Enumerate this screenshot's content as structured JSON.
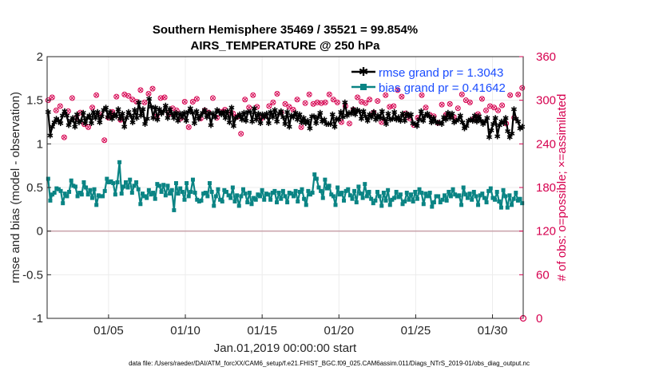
{
  "chart_data": {
    "type": "line",
    "title": "Southern Hemisphere 35469 / 35521 = 99.854%",
    "subtitle": "AIRS_TEMPERATURE @ 250 hPa",
    "xlabel": "Jan.01,2019 00:00:00 start",
    "ylabel": "rmse and bias (model - observation)",
    "ylabel_right": "# of obs: o=possible; ×=assimilated",
    "xlim": [
      1,
      32
    ],
    "ylim": [
      -1,
      2
    ],
    "ylim_right": [
      0,
      360
    ],
    "x_ticks": [
      5,
      10,
      15,
      20,
      25,
      30
    ],
    "x_tick_labels": [
      "01/05",
      "01/10",
      "01/15",
      "01/20",
      "01/25",
      "01/30"
    ],
    "y_ticks": [
      -1,
      -0.5,
      0,
      0.5,
      1,
      1.5,
      2
    ],
    "y_tick_labels": [
      "-1",
      "-0.5",
      "0",
      "0.5",
      "1",
      "1.5",
      "2"
    ],
    "y_right_ticks": [
      0,
      60,
      120,
      180,
      240,
      300,
      360
    ],
    "y_right_tick_labels": [
      "0",
      "60",
      "120",
      "180",
      "240",
      "300",
      "360"
    ],
    "legend_position": "top-right",
    "footer": "data file: /Users/raeder/DAI/ATM_forcXX/CAM6_setup/f.e21.FHIST_BGC.f09_025.CAM6assim.011/Diags_NTrS_2019-01/obs_diag_output.nc",
    "colors": {
      "rmse": "#000000",
      "bias": "#0a8484",
      "obs": "#d6004f",
      "legend_text": "#1a4cff",
      "zero_line": "#c7a0a8"
    },
    "series": [
      {
        "name": "rmse grand pr = 1.3043",
        "axis": "left",
        "values": [
          1.37,
          1.1,
          1.2,
          1.25,
          1.29,
          1.27,
          1.24,
          1.33,
          1.38,
          1.33,
          1.22,
          1.27,
          1.3,
          1.2,
          1.34,
          1.25,
          1.27,
          1.36,
          1.24,
          1.3,
          1.33,
          1.24,
          1.37,
          1.3,
          1.37,
          1.25,
          1.32,
          1.39,
          1.42,
          1.31,
          1.37,
          1.29,
          1.34,
          1.32,
          1.4,
          1.29,
          1.35,
          1.2,
          1.3,
          1.37,
          1.33,
          1.25,
          1.39,
          1.3,
          1.48,
          1.33,
          1.4,
          1.23,
          1.29,
          1.52,
          1.43,
          1.3,
          1.42,
          1.28,
          1.4,
          1.35,
          1.38,
          1.44,
          1.3,
          1.4,
          1.35,
          1.3,
          1.36,
          1.27,
          1.35,
          1.31,
          1.36,
          1.27,
          1.37,
          1.41,
          1.36,
          1.24,
          1.38,
          1.29,
          1.33,
          1.36,
          1.39,
          1.31,
          1.36,
          1.22,
          1.35,
          1.31,
          1.39,
          1.37,
          1.34,
          1.37,
          1.3,
          1.38,
          1.25,
          1.42,
          1.21,
          1.3,
          1.32,
          1.34,
          1.28,
          1.36,
          1.27,
          1.37,
          1.37,
          1.26,
          1.41,
          1.28,
          1.35,
          1.24,
          1.34,
          1.31,
          1.35,
          1.24,
          1.37,
          1.31,
          1.39,
          1.26,
          1.35,
          1.38,
          1.31,
          1.23,
          1.37,
          1.2,
          1.33,
          1.31,
          1.36,
          1.28,
          1.34,
          1.25,
          1.3,
          1.24,
          1.27,
          1.18,
          1.32,
          1.32,
          1.24,
          1.31,
          1.36,
          1.26,
          1.28,
          1.23,
          1.23,
          1.23,
          1.34,
          1.2,
          1.29,
          1.28,
          1.37,
          1.31,
          1.48,
          1.33,
          1.36,
          1.35,
          1.4,
          1.34,
          1.39,
          1.38,
          1.29,
          1.38,
          1.32,
          1.27,
          1.34,
          1.31,
          1.37,
          1.28,
          1.33,
          1.3,
          1.38,
          1.29,
          1.23,
          1.35,
          1.28,
          1.29,
          1.37,
          1.28,
          1.31,
          1.27,
          1.35,
          1.27,
          1.35,
          1.32,
          1.34,
          1.24,
          1.23,
          1.21,
          1.28,
          1.38,
          1.27,
          1.33,
          1.35,
          1.32,
          1.25,
          1.3,
          1.26,
          1.24,
          1.25,
          1.23,
          1.31,
          1.28,
          1.36,
          1.3,
          1.35,
          1.25,
          1.27,
          1.28,
          1.33,
          1.25,
          1.18,
          1.21,
          1.27,
          1.28,
          1.27,
          1.33,
          1.26,
          1.32,
          1.27,
          1.23,
          1.26,
          1.3,
          1.08,
          1.16,
          1.23,
          1.3,
          1.09,
          1.22,
          1.26,
          1.24,
          1.3,
          1.15,
          1.08,
          1.12,
          1.4,
          1.29,
          1.26,
          1.18,
          1.2
        ]
      },
      {
        "name": "bias grand pr = 0.41642",
        "axis": "left",
        "values": [
          0.6,
          0.35,
          0.42,
          0.44,
          0.49,
          0.48,
          0.46,
          0.32,
          0.43,
          0.4,
          0.45,
          0.58,
          0.52,
          0.51,
          0.4,
          0.44,
          0.42,
          0.56,
          0.5,
          0.42,
          0.47,
          0.38,
          0.48,
          0.3,
          0.41,
          0.4,
          0.4,
          0.46,
          0.6,
          0.56,
          0.57,
          0.55,
          0.42,
          0.56,
          0.79,
          0.43,
          0.51,
          0.56,
          0.5,
          0.59,
          0.44,
          0.52,
          0.56,
          0.48,
          0.31,
          0.43,
          0.4,
          0.38,
          0.47,
          0.42,
          0.44,
          0.37,
          0.54,
          0.52,
          0.45,
          0.53,
          0.41,
          0.52,
          0.43,
          0.47,
          0.24,
          0.55,
          0.43,
          0.49,
          0.45,
          0.36,
          0.55,
          0.4,
          0.45,
          0.59,
          0.44,
          0.36,
          0.34,
          0.35,
          0.43,
          0.44,
          0.4,
          0.55,
          0.45,
          0.29,
          0.4,
          0.48,
          0.36,
          0.34,
          0.47,
          0.45,
          0.41,
          0.38,
          0.5,
          0.34,
          0.41,
          0.29,
          0.4,
          0.48,
          0.43,
          0.33,
          0.44,
          0.31,
          0.38,
          0.36,
          0.42,
          0.4,
          0.47,
          0.36,
          0.43,
          0.42,
          0.36,
          0.44,
          0.46,
          0.33,
          0.44,
          0.37,
          0.46,
          0.4,
          0.33,
          0.44,
          0.43,
          0.4,
          0.46,
          0.34,
          0.45,
          0.48,
          0.37,
          0.3,
          0.46,
          0.42,
          0.44,
          0.65,
          0.6,
          0.5,
          0.46,
          0.38,
          0.59,
          0.49,
          0.52,
          0.42,
          0.4,
          0.3,
          0.5,
          0.42,
          0.44,
          0.35,
          0.46,
          0.48,
          0.41,
          0.37,
          0.46,
          0.33,
          0.51,
          0.43,
          0.38,
          0.54,
          0.4,
          0.45,
          0.37,
          0.32,
          0.35,
          0.45,
          0.4,
          0.29,
          0.44,
          0.35,
          0.47,
          0.3,
          0.36,
          0.38,
          0.45,
          0.39,
          0.42,
          0.31,
          0.34,
          0.44,
          0.36,
          0.42,
          0.34,
          0.45,
          0.37,
          0.48,
          0.44,
          0.31,
          0.43,
          0.4,
          0.44,
          0.28,
          0.33,
          0.4,
          0.4,
          0.33,
          0.36,
          0.41,
          0.35,
          0.45,
          0.4,
          0.48,
          0.42,
          0.4,
          0.41,
          0.3,
          0.5,
          0.42,
          0.38,
          0.43,
          0.36,
          0.45,
          0.4,
          0.3,
          0.41,
          0.43,
          0.38,
          0.33,
          0.46,
          0.49,
          0.38,
          0.36,
          0.45,
          0.34,
          0.27,
          0.47,
          0.4,
          0.27,
          0.41,
          0.3,
          0.37,
          0.44,
          0.35,
          0.37,
          0.32
        ]
      },
      {
        "name": "obs possible / assimilated",
        "axis": "right",
        "values": [
          300,
          303,
          304,
          236,
          286,
          283,
          292,
          301,
          249,
          267,
          285,
          268,
          303,
          280,
          276,
          305,
          283,
          324,
          267,
          269,
          263,
          314,
          290,
          279,
          307,
          274,
          280,
          306,
          245,
          297,
          276,
          286,
          284,
          275,
          305,
          309,
          273,
          261,
          308,
          292,
          306,
          304,
          301,
          281,
          298,
          298,
          314,
          270,
          297,
          311,
          309,
          280,
          316,
          307,
          278,
          298,
          303,
          299,
          304,
          252,
          281,
          259,
          289,
          275,
          286,
          295,
          275,
          306,
          298,
          298,
          263,
          309,
          298,
          298,
          302,
          285,
          275,
          307,
          286,
          296,
          283,
          299,
          303,
          293,
          276,
          303,
          284,
          291,
          287,
          292,
          283,
          295,
          282,
          303,
          277,
          304,
          254,
          293,
          301,
          309,
          290,
          269,
          307,
          307,
          291,
          297,
          275,
          305,
          279,
          298,
          292,
          295,
          297,
          297,
          309,
          289,
          283,
          298,
          295,
          280,
          291,
          287,
          287,
          286,
          301,
          262,
          263,
          269,
          296,
          301,
          308,
          295,
          295,
          301,
          297,
          283,
          296,
          304,
          297,
          292,
          308,
          291,
          301,
          285,
          297,
          298,
          270,
          302,
          292,
          288,
          268,
          283,
          287,
          297,
          304,
          300,
          298,
          273,
          296,
          290,
          301,
          299,
          283,
          289,
          299,
          280,
          270,
          271,
          307,
          299,
          291,
          308,
          292,
          276,
          314,
          297,
          305,
          306,
          282,
          301,
          275,
          300,
          266,
          297,
          276,
          267,
          307,
          278,
          290,
          304,
          280,
          298,
          278,
          302,
          269,
          278,
          294,
          312,
          280,
          306,
          295,
          302,
          277,
          317,
          289,
          281,
          308,
          301,
          300,
          288,
          297,
          300,
          275,
          295,
          281,
          300,
          302,
          288,
          286,
          280,
          292,
          272,
          290,
          305,
          286,
          305,
          293,
          279,
          268,
          293,
          307,
          262,
          276,
          298,
          308,
          299,
          317
        ]
      }
    ]
  }
}
